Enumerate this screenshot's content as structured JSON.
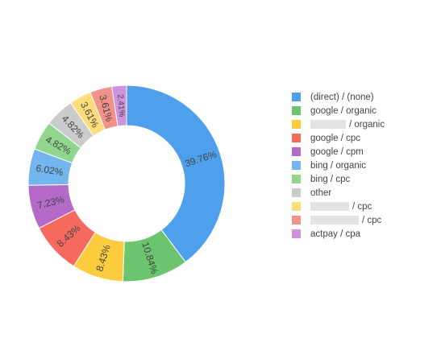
{
  "chart_data": {
    "type": "pie",
    "hole": true,
    "legend_position": "right",
    "slices": [
      {
        "label": "(direct) / (none)",
        "percent": 39.76,
        "percent_label": "39.76%",
        "color": "#4e9fec"
      },
      {
        "label": "google / organic",
        "percent": 10.84,
        "percent_label": "10.84%",
        "color": "#6bc56e"
      },
      {
        "label": "/ organic",
        "percent": 8.43,
        "percent_label": "8.43%",
        "color": "#fdcb3e",
        "redacted": true
      },
      {
        "label": "google / cpc",
        "percent": 8.43,
        "percent_label": "8.43%",
        "color": "#f56a5c"
      },
      {
        "label": "google / cpm",
        "percent": 7.23,
        "percent_label": "7.23%",
        "color": "#b56ac9"
      },
      {
        "label": "bing / organic",
        "percent": 6.02,
        "percent_label": "6.02%",
        "color": "#72b5ef"
      },
      {
        "label": "bing / cpc",
        "percent": 4.82,
        "percent_label": "4.82%",
        "color": "#90d68f"
      },
      {
        "label": "other",
        "percent": 4.82,
        "percent_label": "4.82%",
        "color": "#cbcbcb"
      },
      {
        "label": "/ cpc",
        "percent": 3.61,
        "percent_label": "3.61%",
        "color": "#fddc79",
        "redacted": true
      },
      {
        "label": "/ cpc",
        "percent": 3.61,
        "percent_label": "3.61%",
        "color": "#f39288",
        "redacted": true
      },
      {
        "label": "actpay / cpa",
        "percent": 2.41,
        "percent_label": "2.41%",
        "color": "#cf93db"
      }
    ]
  }
}
